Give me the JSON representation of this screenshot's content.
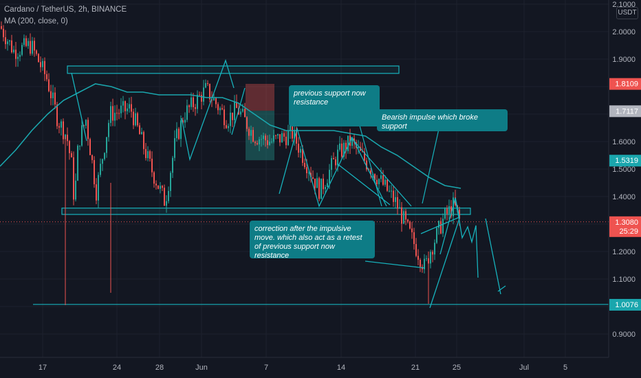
{
  "legend": {
    "symbol": "Cardano / TetherUS, 2h, BINANCE",
    "indicator": "MA (200, close, 0)"
  },
  "currency": "USDT",
  "annotations": {
    "support_resistance": "previous support now resistance",
    "bearish_impulse": "Bearish impulse which broke support",
    "correction": "correction after the impulsive move. which also act as a retest of previous support now resistance"
  },
  "colors": {
    "background": "#131722",
    "up": "#26a69a",
    "down": "#ef5350",
    "ma": "#1aa6ad",
    "zone": "#17b3bd",
    "callout": "#0e7c86",
    "price_label": "#ef5350",
    "ma_label": "#1aa6ad"
  },
  "chart_data": {
    "type": "candlestick",
    "y_ticks": [
      "2.1000",
      "2.0000",
      "1.9000",
      "1.8000",
      "1.7000",
      "1.6000",
      "1.5000",
      "1.4000",
      "1.3000",
      "1.2000",
      "1.1000",
      "1.0000",
      "0.9000"
    ],
    "y_values": [
      2.1,
      2.0,
      1.9,
      1.8,
      1.7,
      1.6,
      1.5,
      1.4,
      1.3,
      1.2,
      1.1,
      1.0,
      0.9
    ],
    "x_ticks": [
      "17",
      "24",
      "28",
      "Jun",
      "7",
      "14",
      "21",
      "25",
      "Jul",
      "5"
    ],
    "price_labels": [
      {
        "value": 1.8109,
        "text": "1.8109",
        "color": "#ef5350"
      },
      {
        "value": 1.7117,
        "text": "1.7117",
        "color": "#b2b5be"
      },
      {
        "value": 1.5319,
        "text": "1.5319",
        "color": "#1aa6ad"
      },
      {
        "value": 1.308,
        "text": "1.3080",
        "sub": "25:29",
        "color": "#ef5350"
      },
      {
        "value": 1.0076,
        "text": "1.0076",
        "color": "#1aa6ad"
      }
    ],
    "levels": {
      "upper_zone": [
        1.875,
        1.848
      ],
      "support_zone": [
        1.358,
        1.335
      ],
      "bottom_line": 1.0076,
      "current": 1.308
    },
    "trade_box": {
      "stop": [
        1.81,
        1.712
      ],
      "target": [
        1.712,
        1.532
      ]
    },
    "ma_200": [
      1.51,
      1.57,
      1.64,
      1.7,
      1.75,
      1.78,
      1.81,
      1.8,
      1.78,
      1.78,
      1.77,
      1.77,
      1.77,
      1.76,
      1.76,
      1.74,
      1.7,
      1.66,
      1.64,
      1.64,
      1.64,
      1.64,
      1.63,
      1.62,
      1.58,
      1.55,
      1.51,
      1.47,
      1.44,
      1.43
    ],
    "series_close": [
      2.02,
      1.93,
      1.95,
      1.83,
      1.68,
      1.62,
      1.5,
      1.37,
      1.6,
      1.68,
      1.42,
      1.7,
      1.72,
      1.5,
      1.38,
      1.6,
      1.7,
      1.79,
      1.68,
      1.72,
      1.62,
      1.6,
      1.63,
      1.42,
      1.55,
      1.6,
      1.45,
      1.38,
      1.14,
      1.2,
      1.32,
      1.37,
      1.3
    ]
  }
}
